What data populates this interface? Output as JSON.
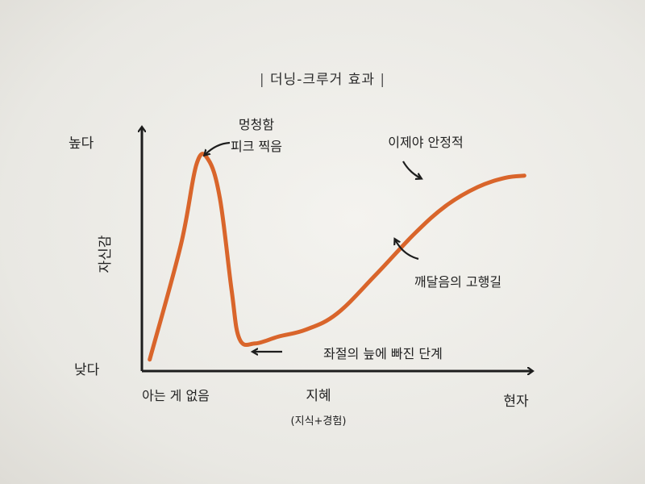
{
  "chart_data": {
    "type": "line",
    "title": "더닝-크루거 효과",
    "xlabel": "지혜",
    "xlabel_sub": "(지식+경험)",
    "ylabel": "자신감",
    "y_tick_high": "높다",
    "y_tick_low": "낮다",
    "x_tick_start": "아는 게 없음",
    "x_tick_end": "현자",
    "series": [
      {
        "color": "#d9652b",
        "x": [
          0.02,
          0.1,
          0.14,
          0.17,
          0.2,
          0.23,
          0.25,
          0.29,
          0.35,
          0.42,
          0.5,
          0.6,
          0.7,
          0.78,
          0.86,
          0.93,
          0.98
        ],
        "y": [
          0.05,
          0.55,
          0.9,
          0.92,
          0.75,
          0.35,
          0.14,
          0.12,
          0.15,
          0.18,
          0.25,
          0.42,
          0.6,
          0.72,
          0.8,
          0.84,
          0.85
        ]
      }
    ],
    "annotations": [
      {
        "text": "멍청함",
        "line2": "피크 찍음"
      },
      {
        "text": "이제야 안정적"
      },
      {
        "text": "깨달음의 고행길"
      },
      {
        "text": "좌절의 늪에 빠진 단계"
      }
    ],
    "ylim": [
      0,
      1
    ],
    "xlim": [
      0,
      1
    ],
    "grid": false
  }
}
